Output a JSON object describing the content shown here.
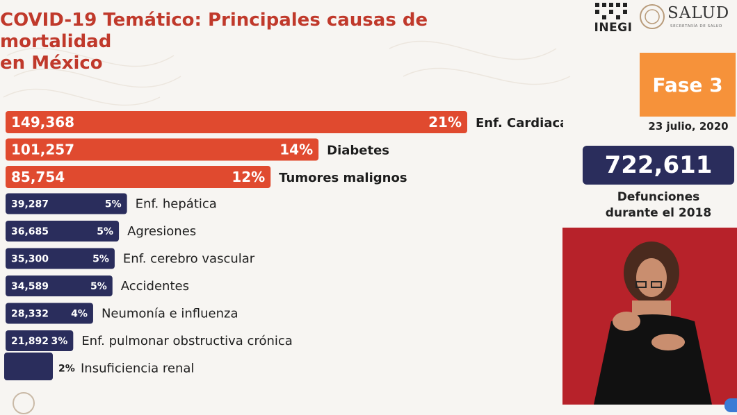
{
  "header": {
    "title_line1": "COVID-19 Temático: Principales causas de mortalidad",
    "title_line2": "en México"
  },
  "logos": {
    "inegi": "INEGI",
    "salud": "SALUD",
    "salud_subtitle": "SECRETARÍA DE SALUD"
  },
  "sidebar": {
    "phase": "Fase 3",
    "date": "23 julio, 2020",
    "total": "722,611",
    "total_label_line1": "Defunciones",
    "total_label_line2": "durante el 2018"
  },
  "colors": {
    "title_red": "#c0392b",
    "top_bar": "#e04a2f",
    "other_bar": "#2a2d5c",
    "phase_orange": "#f6923a",
    "interpreter_bg": "#b7222a"
  },
  "chart_data": {
    "type": "bar",
    "orientation": "horizontal",
    "categories": [
      "Enf. Cardiacas",
      "Diabetes",
      "Tumores malignos",
      "Enf. hepática",
      "Agresiones",
      "Enf. cerebro vascular",
      "Accidentes",
      "Neumonía e influenza",
      "Enf. pulmonar obstructiva crónica",
      "Insuficiencia renal"
    ],
    "values": [
      149368,
      101257,
      85754,
      39287,
      36685,
      35300,
      34589,
      28332,
      21892,
      null
    ],
    "value_labels": [
      "149,368",
      "101,257",
      "85,754",
      "39,287",
      "36,685",
      "35,300",
      "34,589",
      "28,332",
      "21,892",
      ""
    ],
    "percent_labels": [
      "21%",
      "14%",
      "12%",
      "5%",
      "5%",
      "5%",
      "5%",
      "4%",
      "3%",
      "2%"
    ],
    "highlight_top": 3,
    "grid": false,
    "legend": "none"
  }
}
